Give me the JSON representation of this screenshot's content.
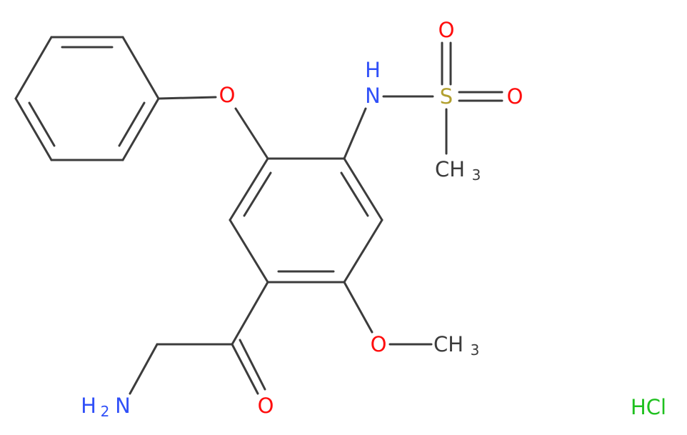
{
  "atoms": {
    "phenoxy_o": "O",
    "amide_n": "N",
    "amide_h": "H",
    "sulfur": "S",
    "sulfonyl_o_top": "O",
    "sulfonyl_o_right": "O",
    "s_methyl": {
      "text": "CH",
      "subscript": "3"
    },
    "methoxy_o": "O",
    "o_methyl": {
      "text": "CH",
      "subscript": "3"
    },
    "amine": {
      "text": "H",
      "subscript": "2",
      "suffix": "N"
    },
    "carbonyl_o": "O",
    "salt": "HCl"
  }
}
